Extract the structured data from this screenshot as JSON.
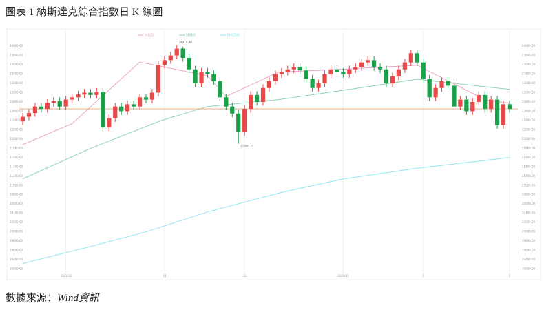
{
  "chart_data": {
    "type": "candlestick",
    "title": "圖表 1 納斯達克綜合指數日 K 線圖",
    "source_prefix": "數據來源：",
    "source_name": "Wind資訊",
    "categories": [
      null,
      null,
      null,
      null,
      null,
      null,
      null,
      "2025/10",
      null,
      null,
      null,
      null,
      null,
      null,
      null,
      null,
      null,
      null,
      null,
      null,
      null,
      null,
      null,
      "11",
      null,
      null,
      null,
      null,
      null,
      null,
      null,
      null,
      null,
      null,
      null,
      null,
      "12",
      null,
      null,
      null,
      null,
      null,
      null,
      null,
      null,
      null,
      null,
      null,
      null,
      null,
      null,
      null,
      "2026/01",
      null,
      null,
      null,
      null,
      null,
      null,
      null,
      null,
      null,
      null,
      null,
      null,
      "2",
      null,
      null,
      null,
      null,
      null,
      null,
      null,
      null,
      null,
      null,
      null,
      null,
      null,
      "3"
    ],
    "candles": {
      "up_color": "#e84a4a",
      "down_color": "#1aa14a",
      "open": [
        22380,
        22480,
        22560,
        22700,
        22650,
        22780,
        22820,
        22700,
        22850,
        22900,
        22960,
        23000,
        22950,
        23020,
        22250,
        22450,
        22700,
        22600,
        22750,
        22700,
        22900,
        22850,
        23000,
        23600,
        23700,
        23800,
        23950,
        23750,
        23500,
        23200,
        23450,
        23400,
        23250,
        22900,
        22700,
        22550,
        22150,
        22650,
        22950,
        22800,
        23100,
        23250,
        23400,
        23450,
        23500,
        23550,
        23480,
        23300,
        23100,
        23200,
        23400,
        23500,
        23450,
        23400,
        23500,
        23550,
        23650,
        23700,
        23550,
        23500,
        23200,
        23350,
        23500,
        23650,
        23850,
        23650,
        23300,
        22900,
        23100,
        23250,
        23150,
        22700,
        22850,
        22600,
        22800,
        22950,
        22650,
        22850,
        22300,
        22750
      ],
      "high": [
        22560,
        22640,
        22780,
        22780,
        22860,
        22900,
        22900,
        22930,
        22980,
        23040,
        23080,
        23080,
        23100,
        23100,
        22530,
        22780,
        22780,
        22830,
        22830,
        22980,
        22980,
        23080,
        23680,
        23780,
        23880,
        24019.99,
        23990,
        23830,
        23580,
        23530,
        23530,
        23480,
        23330,
        22980,
        22780,
        22630,
        22730,
        23030,
        23030,
        23180,
        23330,
        23480,
        23530,
        23580,
        23630,
        23630,
        23560,
        23380,
        23280,
        23480,
        23580,
        23580,
        23530,
        23580,
        23630,
        23730,
        23780,
        23780,
        23630,
        23580,
        23430,
        23580,
        23730,
        23930,
        23930,
        23730,
        23380,
        23180,
        23330,
        23330,
        23230,
        22930,
        22930,
        22880,
        23030,
        23030,
        22930,
        22930,
        22830,
        22830
      ],
      "low": [
        22300,
        22400,
        22480,
        22570,
        22570,
        22700,
        22620,
        22620,
        22770,
        22820,
        22880,
        22870,
        22870,
        22170,
        22170,
        22370,
        22520,
        22520,
        22620,
        22620,
        22770,
        22770,
        22920,
        23520,
        23620,
        23720,
        23670,
        23420,
        23120,
        23120,
        23320,
        23170,
        22820,
        22620,
        22470,
        21900.25,
        22070,
        22570,
        22720,
        22720,
        23020,
        23170,
        23320,
        23370,
        23420,
        23400,
        23220,
        23020,
        23020,
        23120,
        23320,
        23370,
        23320,
        23320,
        23420,
        23470,
        23570,
        23470,
        23420,
        23120,
        23120,
        23270,
        23420,
        23570,
        23570,
        23220,
        22820,
        22820,
        23020,
        23070,
        22620,
        22620,
        22520,
        22520,
        22720,
        22570,
        22570,
        22220,
        22220,
        22570
      ],
      "close": [
        22480,
        22560,
        22700,
        22650,
        22780,
        22820,
        22700,
        22850,
        22900,
        22960,
        23000,
        22950,
        23020,
        22250,
        22450,
        22700,
        22600,
        22750,
        22700,
        22900,
        22850,
        23000,
        23600,
        23700,
        23800,
        23950,
        23750,
        23500,
        23200,
        23450,
        23400,
        23250,
        22900,
        22700,
        22550,
        22150,
        22650,
        22950,
        22800,
        23100,
        23250,
        23400,
        23450,
        23500,
        23550,
        23480,
        23300,
        23100,
        23200,
        23400,
        23500,
        23450,
        23400,
        23500,
        23550,
        23650,
        23700,
        23550,
        23500,
        23200,
        23350,
        23500,
        23650,
        23850,
        23650,
        23300,
        22900,
        23100,
        23250,
        23150,
        22700,
        22850,
        22600,
        22800,
        22950,
        22650,
        22850,
        22300,
        22750,
        22650
      ]
    },
    "lines": [
      {
        "name": "MA20",
        "color": "#e9a3c8",
        "x": [
          0,
          8,
          19,
          30,
          33,
          41.5,
          53,
          64,
          75,
          79
        ],
        "values": [
          21880,
          22330,
          23660,
          23360,
          22920,
          23440,
          23510,
          23590,
          22850,
          22770
        ]
      },
      {
        "name": "MA60",
        "color": "#8fd3b0",
        "x": [
          0,
          11,
          22.5,
          30,
          41.5,
          53,
          64,
          79
        ],
        "values": [
          21140,
          21800,
          22400,
          22700,
          22850,
          23070,
          23290,
          23070
        ]
      },
      {
        "name": "MA250",
        "color": "#8ee6f0",
        "x": [
          0,
          10,
          20,
          30,
          42,
          52,
          64,
          79
        ],
        "values": [
          19320,
          19650,
          20000,
          20430,
          20850,
          21140,
          21370,
          21600
        ]
      }
    ],
    "annotations": [
      {
        "value": 24019.99,
        "label": "24019.99",
        "at": "high"
      },
      {
        "value": 21900.25,
        "label": "21900.25",
        "at": "low"
      }
    ],
    "ylim": [
      19060,
      24150
    ],
    "yticks": [
      {
        "value": 24000,
        "label": "24000.00"
      },
      {
        "value": 23800,
        "label": "23800.00"
      },
      {
        "value": 23600,
        "label": "23600.00"
      },
      {
        "value": 23400,
        "label": "23400.00"
      },
      {
        "value": 23200,
        "label": "23200.00"
      },
      {
        "value": 23000,
        "label": "23000.00"
      },
      {
        "value": 22800,
        "label": "22800.00"
      },
      {
        "value": 22600,
        "label": "22600.00"
      },
      {
        "value": 22400,
        "label": "22400.00"
      },
      {
        "value": 22200,
        "label": "22200.00"
      },
      {
        "value": 22000,
        "label": "22000.00"
      },
      {
        "value": 21800,
        "label": "21800.00"
      },
      {
        "value": 21600,
        "label": "21600.00"
      },
      {
        "value": 21400,
        "label": "21400.00"
      },
      {
        "value": 21200,
        "label": "21200.00"
      },
      {
        "value": 21000,
        "label": "21000.00"
      },
      {
        "value": 20800,
        "label": "20800.00"
      },
      {
        "value": 20600,
        "label": "20600.00"
      },
      {
        "value": 20400,
        "label": "20400.00"
      },
      {
        "value": 20200,
        "label": "20200.00"
      },
      {
        "value": 20000,
        "label": "20000.00"
      },
      {
        "value": 19800,
        "label": "19800.00"
      },
      {
        "value": 19600,
        "label": "19600.00"
      },
      {
        "value": 19400,
        "label": "19400.00"
      },
      {
        "value": 19200,
        "label": "19200.00"
      }
    ],
    "last_price_color": "#f2a36b",
    "grid": "x"
  }
}
